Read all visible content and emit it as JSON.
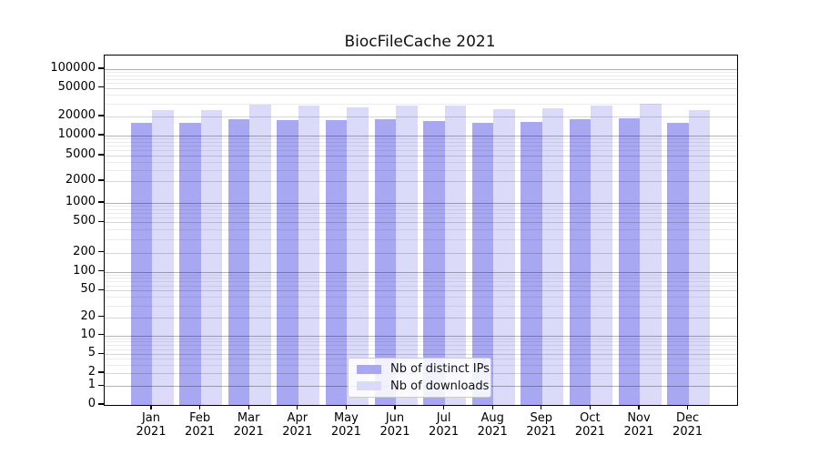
{
  "chart_data": {
    "type": "bar",
    "title": "BiocFileCache 2021",
    "months": [
      "Jan",
      "Feb",
      "Mar",
      "Apr",
      "May",
      "Jun",
      "Jul",
      "Aug",
      "Sep",
      "Oct",
      "Nov",
      "Dec"
    ],
    "year": "2021",
    "series": [
      {
        "name": "Nb of distinct IPs",
        "color": "#a7a7f2",
        "values": [
          15800,
          15700,
          18200,
          17800,
          17300,
          18000,
          16800,
          15800,
          16300,
          17900,
          18600,
          15800
        ]
      },
      {
        "name": "Nb of downloads",
        "color": "#dbdbf9",
        "values": [
          24600,
          24700,
          29100,
          28100,
          27200,
          28700,
          28100,
          25400,
          25900,
          28300,
          30200,
          24600
        ]
      }
    ],
    "yticks": [
      0,
      1,
      2,
      5,
      10,
      20,
      50,
      100,
      200,
      500,
      1000,
      2000,
      5000,
      10000,
      20000,
      50000,
      100000
    ],
    "xlabel": "",
    "ylabel": "",
    "yscale": "log-like (labeled ticks 0,1,2,5,...,100000)",
    "grid": true,
    "legend_position": "lower center"
  },
  "colors": {
    "grid_major": "rgba(0,0,0,0.30)",
    "grid_labeled": "rgba(0,0,0,0.16)",
    "grid_minor": "rgba(0,0,0,0.08)",
    "spine": "#000000",
    "background": "#ffffff"
  }
}
